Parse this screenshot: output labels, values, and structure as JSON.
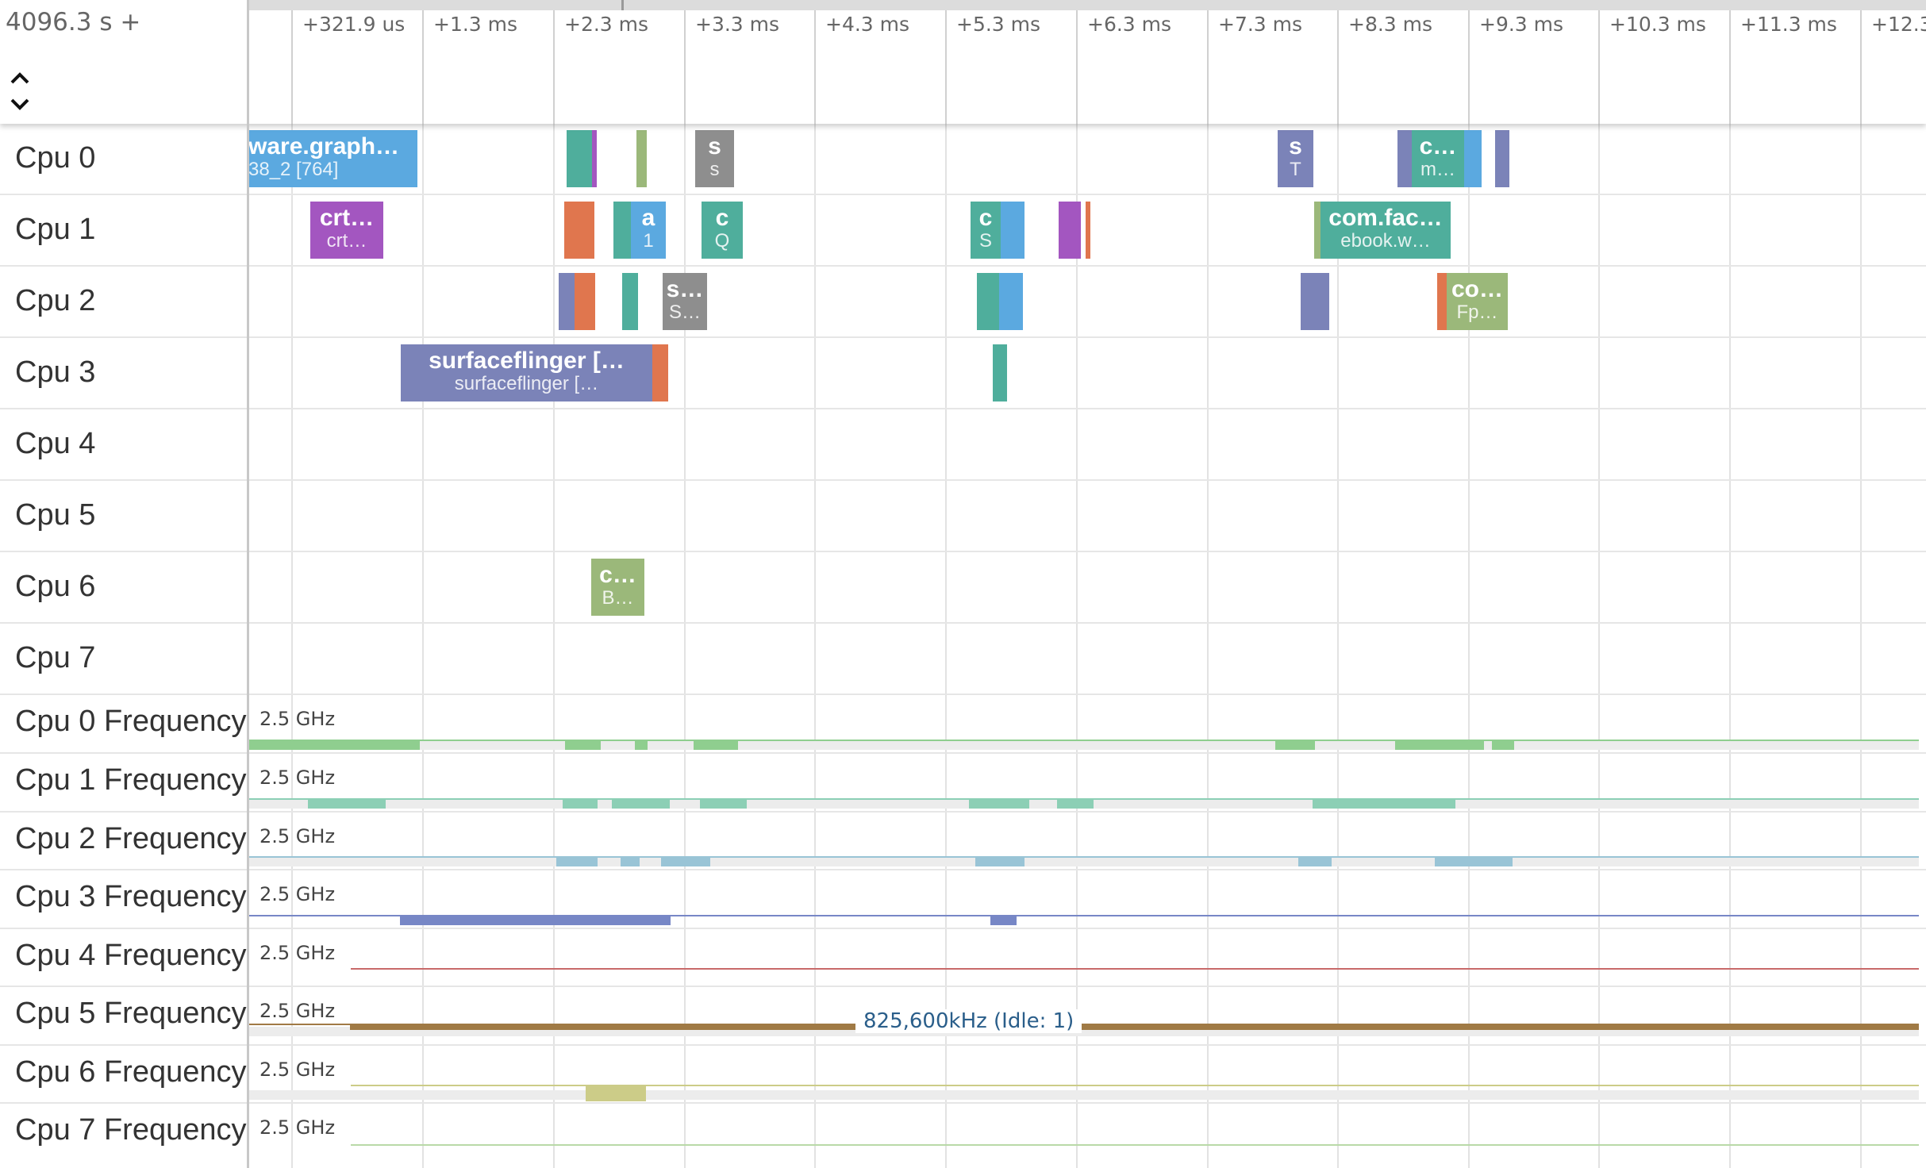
{
  "header": {
    "time_offset": "4096.3 s +",
    "ticks": [
      "+321.9 us",
      "+1.3 ms",
      "+2.3 ms",
      "+3.3 ms",
      "+4.3 ms",
      "+5.3 ms",
      "+6.3 ms",
      "+7.3 ms",
      "+8.3 ms",
      "+9.3 ms",
      "+10.3 ms",
      "+11.3 ms",
      "+12.3"
    ],
    "sort_icon": "up-down-chevron-icon"
  },
  "cpu_tracks": [
    {
      "label": "Cpu 0"
    },
    {
      "label": "Cpu 1"
    },
    {
      "label": "Cpu 2"
    },
    {
      "label": "Cpu 3"
    },
    {
      "label": "Cpu 4"
    },
    {
      "label": "Cpu 5"
    },
    {
      "label": "Cpu 6"
    },
    {
      "label": "Cpu 7"
    }
  ],
  "slices": {
    "cpu0_a": {
      "title": "ware.graph…",
      "sub": "38_2 [764]"
    },
    "cpu0_s": {
      "title": "s",
      "sub": "s"
    },
    "cpu0_s2": {
      "title": "s",
      "sub": "T"
    },
    "cpu0_c": {
      "title": "c…",
      "sub": "m…"
    },
    "cpu1_crt": {
      "title": "crt…",
      "sub": "crt…"
    },
    "cpu1_a": {
      "title": "a",
      "sub": "1"
    },
    "cpu1_c": {
      "title": "c",
      "sub": "Q"
    },
    "cpu1_c2": {
      "title": "c",
      "sub": "S"
    },
    "cpu1_fb": {
      "title": "com.fac…",
      "sub": "ebook.w…"
    },
    "cpu2_s": {
      "title": "s…",
      "sub": "S…"
    },
    "cpu2_co": {
      "title": "co…",
      "sub": "Fp…"
    },
    "cpu3_sf": {
      "title": "surfaceflinger […",
      "sub": "surfaceflinger […"
    },
    "cpu6_c": {
      "title": "c…",
      "sub": "B…"
    }
  },
  "freq_tracks": [
    {
      "label": "Cpu 0 Frequency",
      "scale": "2.5 GHz"
    },
    {
      "label": "Cpu 1 Frequency",
      "scale": "2.5 GHz"
    },
    {
      "label": "Cpu 2 Frequency",
      "scale": "2.5 GHz"
    },
    {
      "label": "Cpu 3 Frequency",
      "scale": "2.5 GHz"
    },
    {
      "label": "Cpu 4 Frequency",
      "scale": "2.5 GHz"
    },
    {
      "label": "Cpu 5 Frequency",
      "scale": "2.5 GHz",
      "hover": "825,600kHz (Idle: 1)"
    },
    {
      "label": "Cpu 6 Frequency",
      "scale": "2.5 GHz"
    },
    {
      "label": "Cpu 7 Frequency",
      "scale": "2.5 GHz"
    }
  ],
  "colors": {
    "blue": "#5ba9e0",
    "purple_blue": "#7b83b8",
    "teal": "#4fae9c",
    "orange": "#e0764e",
    "purple": "#a356c0",
    "olive": "#9bb87a",
    "gray": "#8e8e8e",
    "green": "#8fce8f",
    "freq_teal": "#8ccfb5",
    "freq_blue": "#99c4d6",
    "freq_indigo": "#7787c6",
    "freq_red": "#c86a6a",
    "freq_brown": "#a07a45",
    "freq_khaki": "#cccc88"
  }
}
